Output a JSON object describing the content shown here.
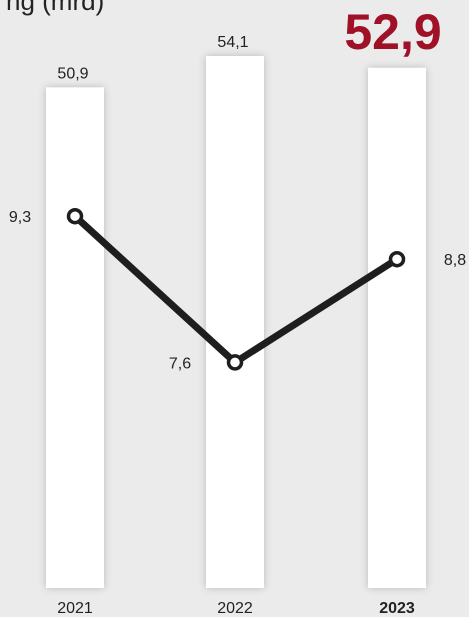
{
  "chart_data": {
    "type": "bar+line",
    "title_partial": "ng (mrd)",
    "categories": [
      "2021",
      "2022",
      "2023"
    ],
    "highlight_category": "2023",
    "series": [
      {
        "type": "bar",
        "values": [
          50.9,
          54.1,
          52.9
        ],
        "labels": [
          "50,9",
          "54,1",
          "52,9"
        ]
      },
      {
        "type": "line",
        "values": [
          9.3,
          7.6,
          8.8
        ],
        "labels": [
          "9,3",
          "7,6",
          "8,8"
        ]
      }
    ],
    "bar_ylim": [
      0,
      54.1
    ],
    "line_ylim": [
      6,
      11
    ],
    "grid": false,
    "colors": {
      "background": "#ebebeb",
      "bar": "#ffffff",
      "line": "#1e1e1e",
      "highlight": "#9e1127",
      "text": "#222222"
    }
  }
}
